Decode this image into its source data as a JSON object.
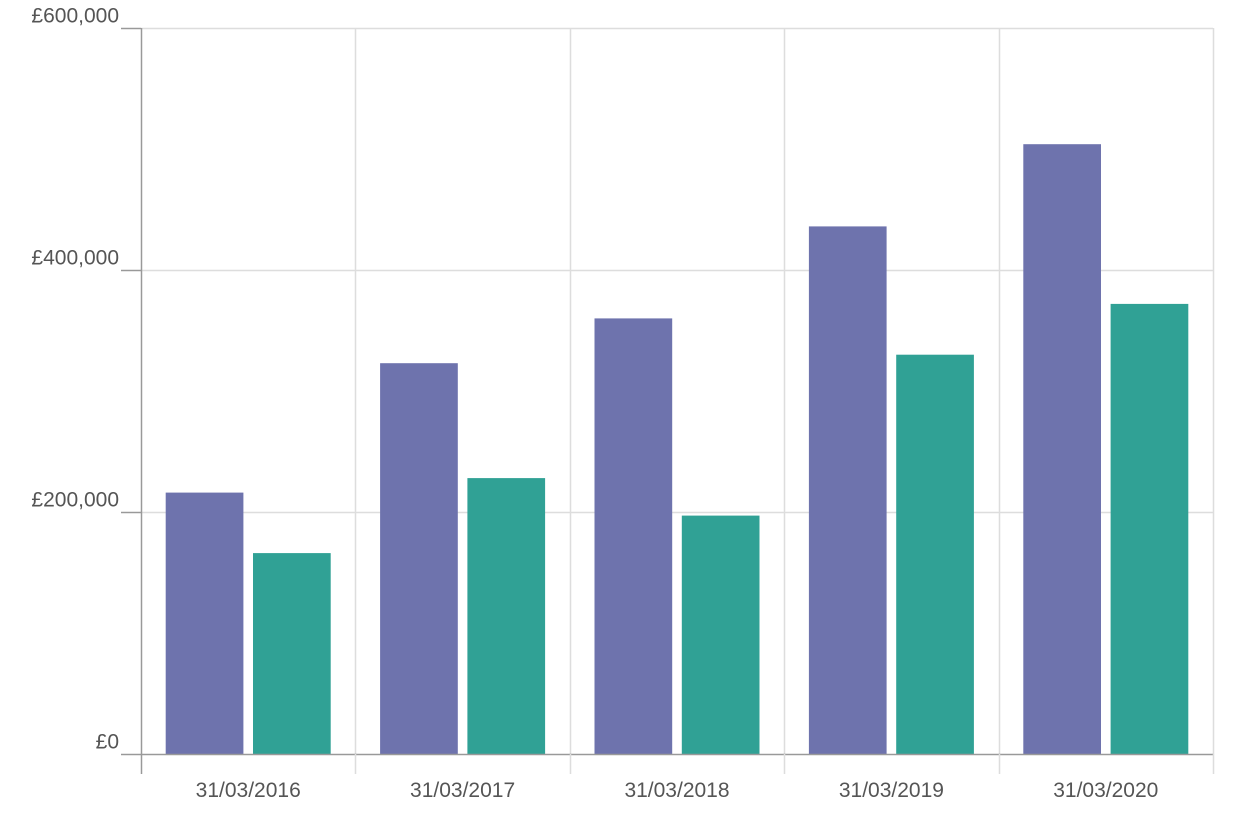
{
  "chart_data": {
    "type": "bar",
    "title": "",
    "xlabel": "",
    "ylabel": "",
    "categories": [
      "31/03/2016",
      "31/03/2017",
      "31/03/2018",
      "31/03/2019",
      "31/03/2020"
    ],
    "series": [
      {
        "color": "#6e73ad",
        "values": [
          216000,
          323000,
          360000,
          436000,
          504000
        ]
      },
      {
        "color": "#30a195",
        "values": [
          166000,
          228000,
          197000,
          330000,
          372000
        ]
      }
    ],
    "ylim": [
      0,
      600000
    ],
    "yticks": [
      0,
      200000,
      400000,
      600000
    ],
    "ytick_labels": [
      "£0",
      "£200,000",
      "£400,000",
      "£600,000"
    ],
    "grid": true,
    "legend": "none"
  },
  "colors": {
    "grid": "#dddddd",
    "axis": "#999999",
    "label": "#555555"
  }
}
